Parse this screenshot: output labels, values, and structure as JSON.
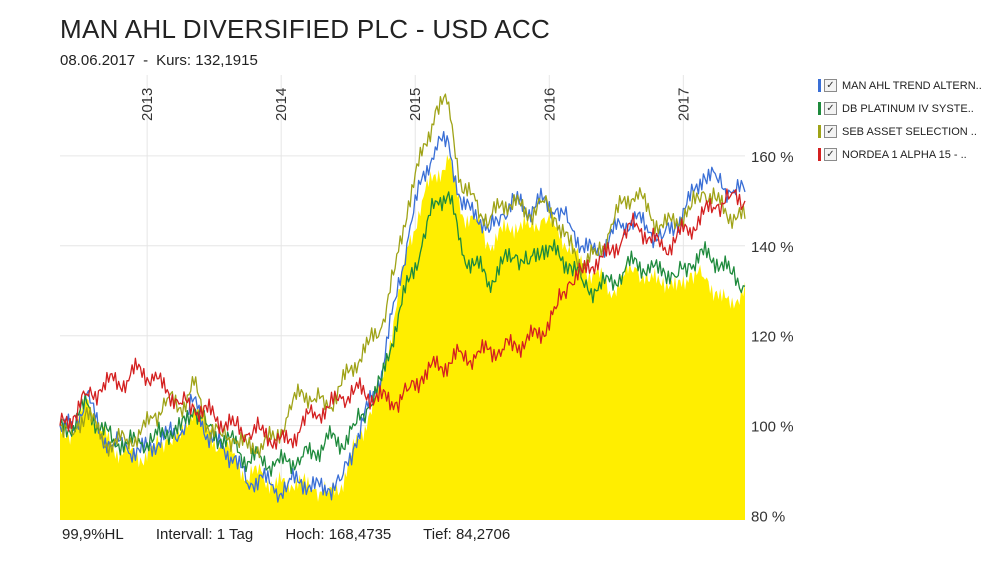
{
  "header": {
    "title": "MAN AHL DIVERSIFIED PLC - USD ACC",
    "date": "08.06.2017",
    "separator": "-",
    "kurs_label": "Kurs:",
    "kurs_value": "132,1915"
  },
  "footer": {
    "hl": "99,9%HL",
    "interval": "Intervall: 1 Tag",
    "high": "Hoch: 168,4735",
    "low": "Tief: 84,2706"
  },
  "legend": [
    {
      "label": "MAN AHL TREND ALTERN..",
      "color": "#3a6fd6",
      "checked": "✓"
    },
    {
      "label": "DB PLATINUM IV SYSTE..",
      "color": "#1e8a3c",
      "checked": "✓"
    },
    {
      "label": "SEB ASSET SELECTION ..",
      "color": "#9fa317",
      "checked": "✓"
    },
    {
      "label": "NORDEA 1 ALPHA 15 - ..",
      "color": "#d42020",
      "checked": "✓"
    }
  ],
  "chart_data": {
    "type": "area",
    "x_range": [
      2012.35,
      2017.46
    ],
    "ylim": [
      79,
      178
    ],
    "y_ticks": [
      80,
      100,
      120,
      140,
      160
    ],
    "y_tick_labels": [
      "80 %",
      "100 %",
      "120 %",
      "140 %",
      "160 %"
    ],
    "x_ticks": [
      2013,
      2014,
      2015,
      2016,
      2017
    ],
    "x_tick_labels": [
      "2013",
      "2014",
      "2015",
      "2016",
      "2017"
    ],
    "grid": true,
    "legend_position": "right",
    "series": [
      {
        "name": "MAN AHL DIVERSIFIED PLC - USD ACC",
        "style": "area",
        "color": "#ffee00",
        "x": [
          2012.35,
          2012.45,
          2012.55,
          2012.65,
          2012.75,
          2012.85,
          2012.95,
          2013.05,
          2013.15,
          2013.25,
          2013.35,
          2013.45,
          2013.55,
          2013.65,
          2013.75,
          2013.85,
          2013.95,
          2014.05,
          2014.15,
          2014.25,
          2014.35,
          2014.45,
          2014.55,
          2014.65,
          2014.75,
          2014.85,
          2014.95,
          2015.05,
          2015.15,
          2015.25,
          2015.35,
          2015.45,
          2015.55,
          2015.65,
          2015.75,
          2015.85,
          2015.95,
          2016.05,
          2016.15,
          2016.25,
          2016.35,
          2016.45,
          2016.55,
          2016.65,
          2016.75,
          2016.85,
          2016.95,
          2017.05,
          2017.15,
          2017.25,
          2017.35,
          2017.46
        ],
        "values": [
          100,
          98,
          106,
          99,
          95,
          94,
          93,
          95,
          97,
          97,
          105,
          99,
          95,
          94,
          88,
          90,
          86,
          88,
          87,
          86,
          85,
          87,
          95,
          102,
          110,
          125,
          140,
          150,
          156,
          159,
          147,
          146,
          140,
          143,
          145,
          144,
          146,
          144,
          140,
          135,
          134,
          130,
          133,
          135,
          132,
          133,
          130,
          134,
          133,
          130,
          126,
          132
        ]
      },
      {
        "name": "MAN AHL TREND ALTERN..",
        "style": "line",
        "color": "#3a6fd6",
        "x": [
          2012.35,
          2012.45,
          2012.55,
          2012.65,
          2012.75,
          2012.85,
          2012.95,
          2013.05,
          2013.15,
          2013.25,
          2013.35,
          2013.45,
          2013.55,
          2013.65,
          2013.75,
          2013.85,
          2013.95,
          2014.05,
          2014.15,
          2014.25,
          2014.35,
          2014.45,
          2014.55,
          2014.65,
          2014.75,
          2014.85,
          2014.95,
          2015.05,
          2015.15,
          2015.25,
          2015.35,
          2015.45,
          2015.55,
          2015.65,
          2015.75,
          2015.85,
          2015.95,
          2016.05,
          2016.15,
          2016.25,
          2016.35,
          2016.45,
          2016.55,
          2016.65,
          2016.75,
          2016.85,
          2016.95,
          2017.05,
          2017.15,
          2017.25,
          2017.35,
          2017.46
        ],
        "values": [
          100,
          99,
          107,
          98,
          96,
          95,
          94,
          96,
          98,
          98,
          106,
          98,
          95,
          93,
          87,
          89,
          85,
          87,
          88,
          86,
          86,
          88,
          96,
          104,
          112,
          128,
          142,
          155,
          162,
          163,
          148,
          148,
          143,
          147,
          150,
          148,
          150,
          148,
          145,
          140,
          138,
          142,
          145,
          146,
          143,
          142,
          145,
          150,
          156,
          155,
          152,
          152
        ]
      },
      {
        "name": "DB PLATINUM IV SYSTE..",
        "style": "line",
        "color": "#1e8a3c",
        "x": [
          2012.35,
          2012.45,
          2012.55,
          2012.65,
          2012.75,
          2012.85,
          2012.95,
          2013.05,
          2013.15,
          2013.25,
          2013.35,
          2013.45,
          2013.55,
          2013.65,
          2013.75,
          2013.85,
          2013.95,
          2014.05,
          2014.15,
          2014.25,
          2014.35,
          2014.45,
          2014.55,
          2014.65,
          2014.75,
          2014.85,
          2014.95,
          2015.05,
          2015.15,
          2015.25,
          2015.35,
          2015.45,
          2015.55,
          2015.65,
          2015.75,
          2015.85,
          2015.95,
          2016.05,
          2016.15,
          2016.25,
          2016.35,
          2016.45,
          2016.55,
          2016.65,
          2016.75,
          2016.85,
          2016.95,
          2017.05,
          2017.15,
          2017.25,
          2017.35,
          2017.46
        ],
        "values": [
          100,
          100,
          105,
          99,
          97,
          96,
          96,
          97,
          99,
          99,
          104,
          100,
          97,
          96,
          92,
          93,
          91,
          92,
          93,
          94,
          97,
          96,
          100,
          104,
          110,
          122,
          132,
          140,
          150,
          152,
          138,
          136,
          132,
          136,
          138,
          136,
          140,
          138,
          136,
          132,
          130,
          132,
          134,
          137,
          134,
          135,
          133,
          136,
          138,
          137,
          134,
          131
        ]
      },
      {
        "name": "SEB ASSET SELECTION ..",
        "style": "line",
        "color": "#9fa317",
        "x": [
          2012.35,
          2012.45,
          2012.55,
          2012.65,
          2012.75,
          2012.85,
          2012.95,
          2013.05,
          2013.15,
          2013.25,
          2013.35,
          2013.45,
          2013.55,
          2013.65,
          2013.75,
          2013.85,
          2013.95,
          2014.05,
          2014.15,
          2014.25,
          2014.35,
          2014.45,
          2014.55,
          2014.65,
          2014.75,
          2014.85,
          2014.95,
          2015.05,
          2015.15,
          2015.25,
          2015.35,
          2015.45,
          2015.55,
          2015.65,
          2015.75,
          2015.85,
          2015.95,
          2016.05,
          2016.15,
          2016.25,
          2016.35,
          2016.45,
          2016.55,
          2016.65,
          2016.75,
          2016.85,
          2016.95,
          2017.05,
          2017.15,
          2017.25,
          2017.35,
          2017.46
        ],
        "values": [
          100,
          98,
          104,
          97,
          96,
          97,
          98,
          102,
          106,
          104,
          109,
          100,
          98,
          97,
          95,
          96,
          97,
          102,
          108,
          106,
          104,
          109,
          114,
          118,
          122,
          135,
          150,
          160,
          170,
          172,
          152,
          150,
          145,
          150,
          149,
          147,
          150,
          146,
          140,
          136,
          138,
          143,
          150,
          152,
          147,
          144,
          146,
          148,
          152,
          150,
          147,
          146
        ]
      },
      {
        "name": "NORDEA 1 ALPHA 15 - ..",
        "style": "line",
        "color": "#d42020",
        "x": [
          2012.35,
          2012.45,
          2012.55,
          2012.65,
          2012.75,
          2012.85,
          2012.95,
          2013.05,
          2013.15,
          2013.25,
          2013.35,
          2013.45,
          2013.55,
          2013.65,
          2013.75,
          2013.85,
          2013.95,
          2014.05,
          2014.15,
          2014.25,
          2014.35,
          2014.45,
          2014.55,
          2014.65,
          2014.75,
          2014.85,
          2014.95,
          2015.05,
          2015.15,
          2015.25,
          2015.35,
          2015.45,
          2015.55,
          2015.65,
          2015.75,
          2015.85,
          2015.95,
          2016.05,
          2016.15,
          2016.25,
          2016.35,
          2016.45,
          2016.55,
          2016.65,
          2016.75,
          2016.85,
          2016.95,
          2017.05,
          2017.15,
          2017.25,
          2017.35,
          2017.46
        ],
        "values": [
          100,
          102,
          107,
          108,
          110,
          110,
          113,
          110,
          108,
          105,
          104,
          103,
          101,
          100,
          98,
          99,
          97,
          96,
          100,
          103,
          104,
          106,
          108,
          107,
          106,
          105,
          108,
          111,
          113,
          114,
          116,
          115,
          117,
          117,
          118,
          119,
          121,
          126,
          132,
          134,
          137,
          138,
          142,
          145,
          142,
          139,
          142,
          144,
          147,
          149,
          151,
          150
        ]
      }
    ]
  }
}
